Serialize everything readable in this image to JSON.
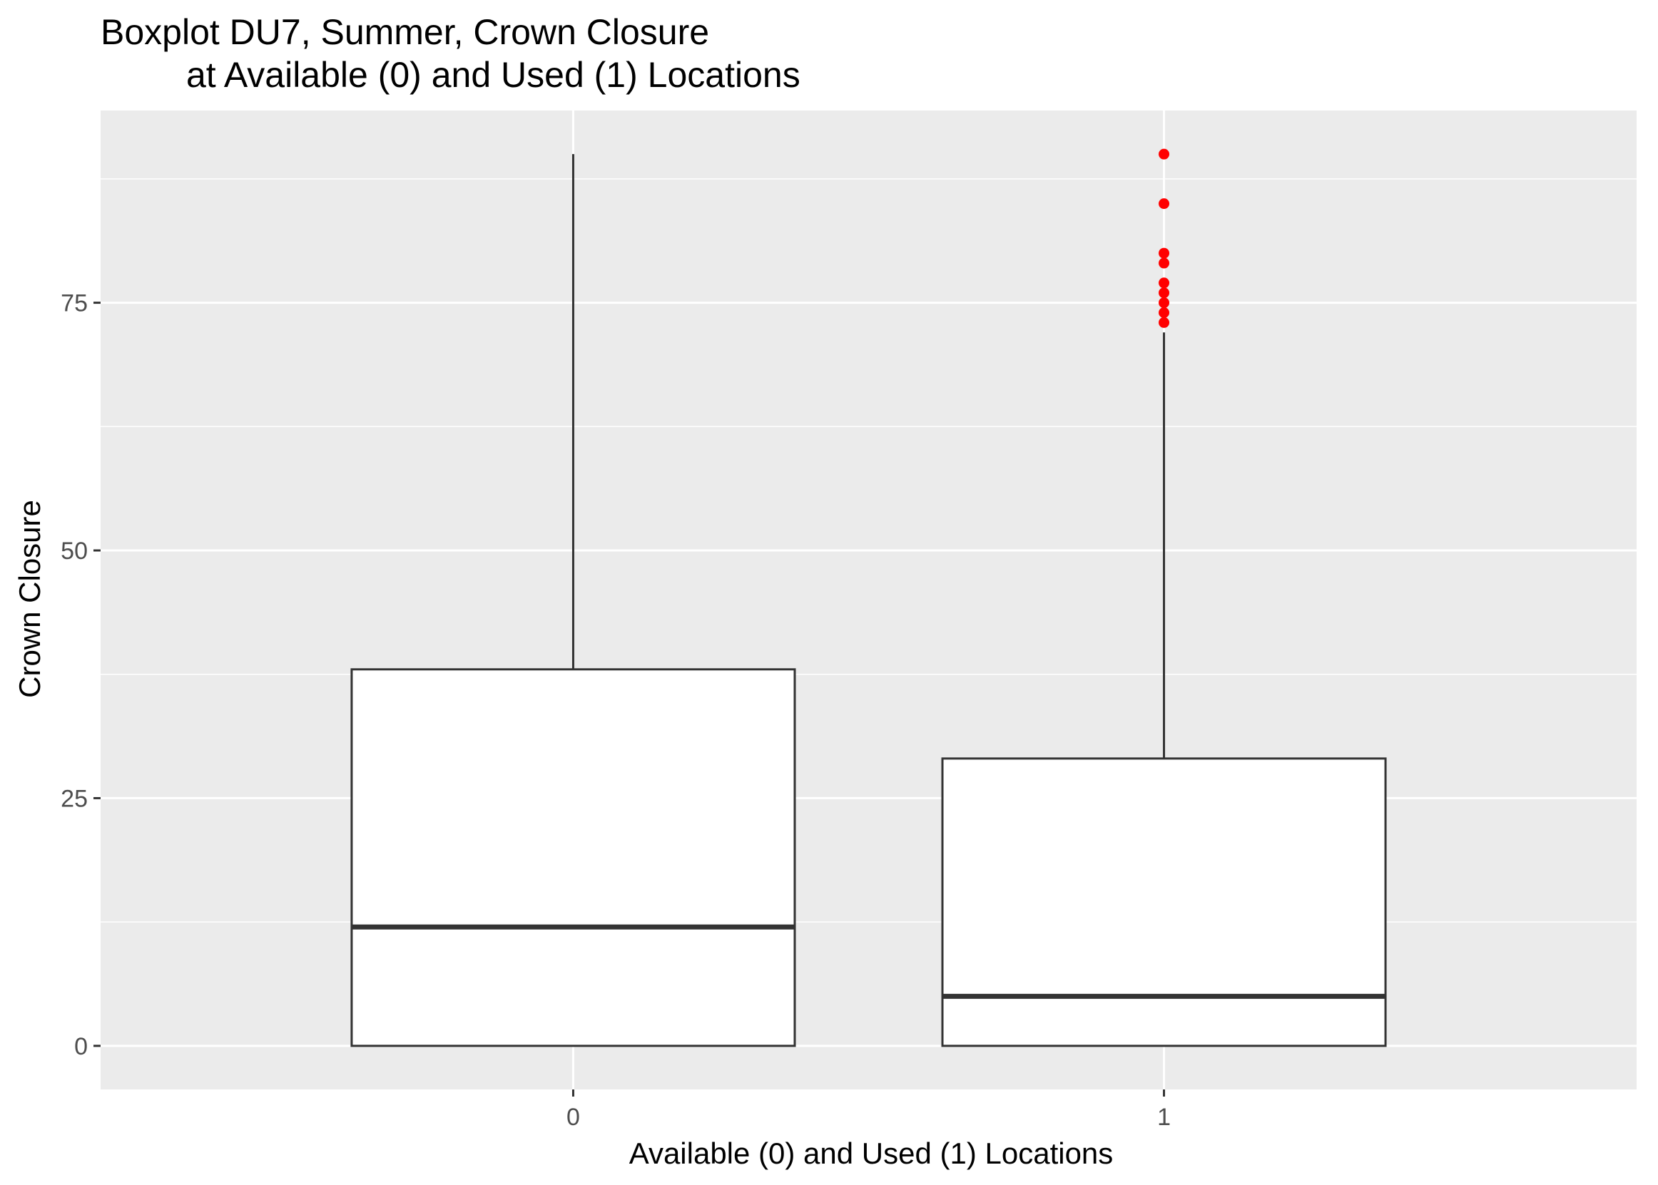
{
  "chart_data": {
    "type": "boxplot",
    "title": "Boxplot DU7, Summer, Crown Closure",
    "subtitle": "at Available (0) and Used (1) Locations",
    "xlabel": "Available (0) and Used (1) Locations",
    "ylabel": "Crown Closure",
    "ylim": [
      -4.4,
      94.4
    ],
    "yticks": [
      0,
      25,
      50,
      75
    ],
    "yticks_minor": [
      12.5,
      37.5,
      62.5,
      87.5
    ],
    "grid": true,
    "categories": [
      "0",
      "1"
    ],
    "boxes": [
      {
        "category": "0",
        "min": 0,
        "q1": 0,
        "median": 12,
        "q3": 38,
        "max": 90,
        "outliers": []
      },
      {
        "category": "1",
        "min": 0,
        "q1": 0,
        "median": 5,
        "q3": 29,
        "max": 72,
        "outliers": [
          73,
          74,
          75,
          76,
          77,
          79,
          80,
          85,
          90
        ]
      }
    ],
    "colors": {
      "panel": "#ebebeb",
      "grid": "#ffffff",
      "box_fill": "#ffffff",
      "box_stroke": "#333333",
      "outlier": "#ff0000",
      "tick": "#333333"
    }
  }
}
